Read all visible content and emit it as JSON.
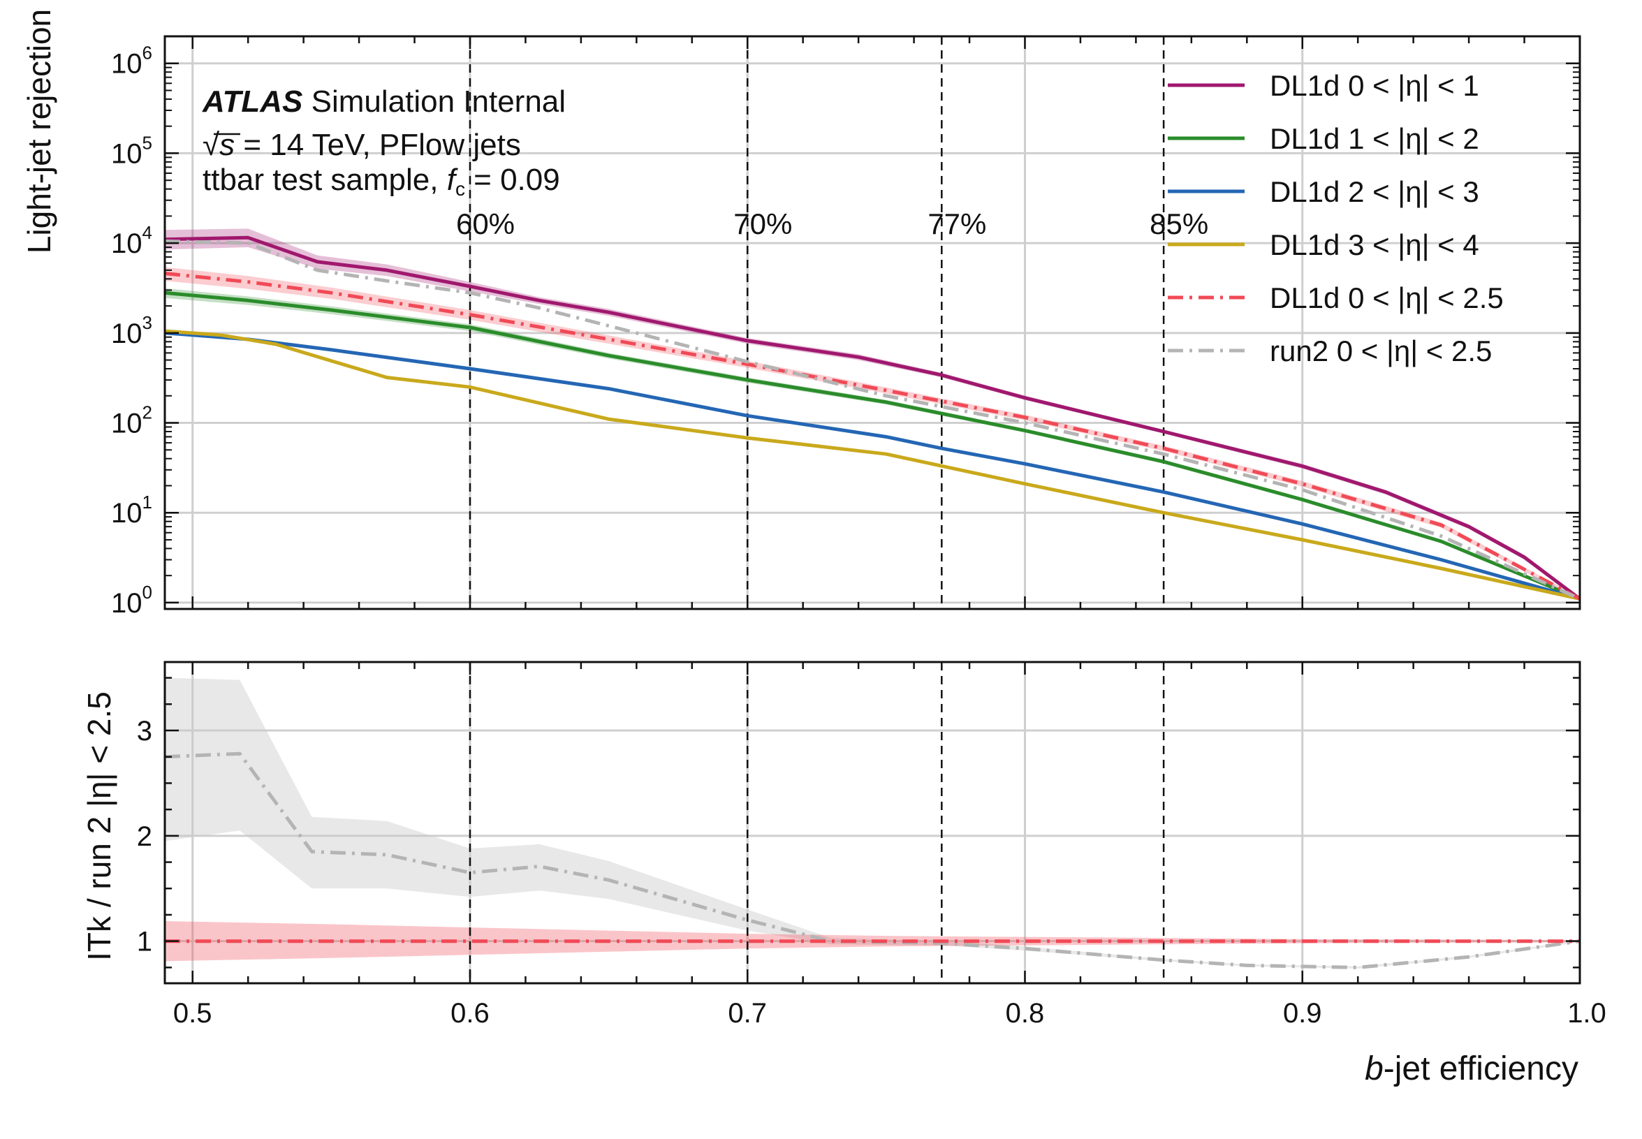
{
  "chart_data": [
    {
      "type": "line",
      "panel": "main",
      "ylabel": "Light-jet rejection",
      "yscale": "log",
      "xlim": [
        0.49,
        1.0
      ],
      "ylim": [
        0.85,
        2000000
      ],
      "ytick_labels": [
        {
          "v": 1,
          "base": "10",
          "exp": "0"
        },
        {
          "v": 10,
          "base": "10",
          "exp": "1"
        },
        {
          "v": 100,
          "base": "10",
          "exp": "2"
        },
        {
          "v": 1000,
          "base": "10",
          "exp": "3"
        },
        {
          "v": 10000,
          "base": "10",
          "exp": "4"
        },
        {
          "v": 100000,
          "base": "10",
          "exp": "5"
        },
        {
          "v": 1000000,
          "base": "10",
          "exp": "6"
        }
      ],
      "grid": true,
      "legend_position": "top-right",
      "annotation": {
        "atlas": "ATLAS",
        "atlas_suffix": " Simulation Internal",
        "line2_sqrt": "√",
        "line2_s": "s",
        "line2_rest": " = 14 TeV, PFlow jets",
        "line3_pre": "ttbar test sample, ",
        "line3_f": "f",
        "line3_sub": "c",
        "line3_post": " = 0.09"
      },
      "working_points": [
        {
          "x": 0.6,
          "label": "60%"
        },
        {
          "x": 0.7,
          "label": "70%"
        },
        {
          "x": 0.77,
          "label": "77%"
        },
        {
          "x": 0.85,
          "label": "85%"
        }
      ],
      "series": [
        {
          "name": "DL1d  0 < |η| < 1",
          "color": "#a0186e",
          "dash": "solid",
          "x": [
            0.49,
            0.52,
            0.545,
            0.57,
            0.6,
            0.625,
            0.65,
            0.7,
            0.74,
            0.77,
            0.8,
            0.85,
            0.9,
            0.93,
            0.96,
            0.98,
            1.0
          ],
          "y": [
            11000,
            11500,
            6200,
            5000,
            3300,
            2300,
            1700,
            820,
            540,
            340,
            190,
            80,
            33,
            17,
            7,
            3.2,
            1.1
          ],
          "band": {
            "lo": [
              8500,
              9000,
              5200,
              4300,
              2900,
              2100,
              1550,
              760,
              500,
              320,
              180,
              76,
              31,
              16,
              6.6,
              3.0,
              1.05
            ],
            "hi": [
              14000,
              14500,
              7300,
              5800,
              3700,
              2500,
              1850,
              880,
              580,
              360,
              200,
              84,
              35,
              18,
              7.4,
              3.4,
              1.15
            ]
          }
        },
        {
          "name": "DL1d  1 < |η| < 2",
          "color": "#2a8c2a",
          "dash": "solid",
          "x": [
            0.49,
            0.52,
            0.55,
            0.6,
            0.65,
            0.7,
            0.75,
            0.8,
            0.85,
            0.9,
            0.95,
            1.0
          ],
          "y": [
            2800,
            2300,
            1800,
            1150,
            560,
            300,
            170,
            82,
            37,
            14,
            4.8,
            1.1
          ],
          "band": {
            "lo": [
              2450,
              2050,
              1620,
              1050,
              520,
              280,
              160,
              78,
              35,
              13.3,
              4.6,
              1.05
            ],
            "hi": [
              3150,
              2550,
              1980,
              1250,
              600,
              320,
              180,
              86,
              39,
              14.7,
              5.0,
              1.15
            ]
          }
        },
        {
          "name": "DL1d  2 < |η| < 3",
          "color": "#2466b4",
          "dash": "solid",
          "x": [
            0.49,
            0.52,
            0.55,
            0.6,
            0.65,
            0.7,
            0.75,
            0.77,
            0.8,
            0.85,
            0.9,
            0.95,
            1.0
          ],
          "y": [
            1000,
            850,
            650,
            400,
            240,
            120,
            70,
            52,
            35,
            17,
            7.5,
            3.0,
            1.1
          ]
        },
        {
          "name": "DL1d  3 < |η| < 4",
          "color": "#c9a91c",
          "dash": "solid",
          "x": [
            0.49,
            0.51,
            0.53,
            0.57,
            0.6,
            0.65,
            0.7,
            0.75,
            0.8,
            0.85,
            0.9,
            0.95,
            1.0
          ],
          "y": [
            1050,
            950,
            750,
            320,
            250,
            110,
            68,
            45,
            21,
            10,
            5,
            2.4,
            1.1
          ]
        },
        {
          "name": "DL1d 0 < |η| < 2.5",
          "color": "#f04a56",
          "dash": "dashdot",
          "x": [
            0.49,
            0.52,
            0.55,
            0.6,
            0.65,
            0.7,
            0.75,
            0.8,
            0.85,
            0.9,
            0.95,
            1.0
          ],
          "y": [
            4600,
            3700,
            2800,
            1600,
            850,
            450,
            230,
            115,
            52,
            21,
            7.3,
            1.1
          ],
          "band": {
            "lo": [
              3800,
              3100,
              2400,
              1400,
              760,
              410,
              212,
              107,
              48.5,
              19.5,
              6.8,
              1.05
            ],
            "hi": [
              5400,
              4300,
              3200,
              1800,
              940,
              490,
              248,
              123,
              55.5,
              22.5,
              7.8,
              1.15
            ]
          }
        },
        {
          "name": "run2 0 < |η| < 2.5",
          "color": "#b4b4b4",
          "dash": "dashdot",
          "x": [
            0.49,
            0.52,
            0.545,
            0.57,
            0.6,
            0.625,
            0.65,
            0.7,
            0.75,
            0.8,
            0.85,
            0.9,
            0.95,
            1.0
          ],
          "y": [
            10500,
            10000,
            5000,
            3800,
            2800,
            1900,
            1200,
            480,
            200,
            100,
            45,
            18,
            5.5,
            1.1
          ]
        }
      ],
      "legend": [
        {
          "label": "DL1d  0 < |η| < 1"
        },
        {
          "label": "DL1d  1 < |η| < 2"
        },
        {
          "label": "DL1d  2 < |η| < 3"
        },
        {
          "label": "DL1d  3 < |η| < 4"
        },
        {
          "label": "DL1d 0 < |η| < 2.5"
        },
        {
          "label": "run2 0 < |η| < 2.5"
        }
      ]
    },
    {
      "type": "line",
      "panel": "ratio",
      "ylabel": "ITk / run 2 |η| < 2.5",
      "xlabel_italic": "b",
      "xlabel_rest": "-jet efficiency",
      "xlim": [
        0.49,
        1.0
      ],
      "ylim": [
        0.6,
        3.65
      ],
      "xticks": [
        {
          "v": 0.5,
          "label": "0.5"
        },
        {
          "v": 0.6,
          "label": "0.6"
        },
        {
          "v": 0.7,
          "label": "0.7"
        },
        {
          "v": 0.8,
          "label": "0.8"
        },
        {
          "v": 0.9,
          "label": "0.9"
        },
        {
          "v": 1.0,
          "label": "1.0"
        }
      ],
      "yticks": [
        {
          "v": 1,
          "label": "1"
        },
        {
          "v": 2,
          "label": "2"
        },
        {
          "v": 3,
          "label": "3"
        }
      ],
      "grid": true,
      "series": [
        {
          "name": "run2 0 < |η| < 2.5",
          "color": "#b4b4b4",
          "dash": "dashdot",
          "x": [
            0.49,
            0.517,
            0.543,
            0.57,
            0.6,
            0.625,
            0.65,
            0.7,
            0.73,
            0.77,
            0.8,
            0.85,
            0.88,
            0.92,
            0.96,
            1.0
          ],
          "y": [
            2.75,
            2.78,
            1.85,
            1.82,
            1.65,
            1.71,
            1.58,
            1.2,
            1.0,
            0.98,
            0.93,
            0.82,
            0.77,
            0.75,
            0.85,
            1.0
          ],
          "band": {
            "lo": [
              1.95,
              2.05,
              1.5,
              1.5,
              1.42,
              1.48,
              1.4,
              1.1,
              0.97,
              0.96,
              0.91,
              0.81,
              0.76,
              0.74,
              0.84,
              0.99
            ],
            "hi": [
              3.5,
              3.48,
              2.18,
              2.14,
              1.88,
              1.92,
              1.76,
              1.3,
              1.03,
              1.0,
              0.95,
              0.83,
              0.78,
              0.76,
              0.86,
              1.01
            ]
          }
        },
        {
          "name": "DL1d 0 < |η| < 2.5",
          "color": "#f04a56",
          "dash": "dashdot",
          "x": [
            0.49,
            0.55,
            0.6,
            0.65,
            0.7,
            0.75,
            0.8,
            0.85,
            0.9,
            0.95,
            1.0
          ],
          "y": [
            1,
            1,
            1,
            1,
            1,
            1,
            1,
            1,
            1,
            1,
            1
          ],
          "band": {
            "lo": [
              0.81,
              0.84,
              0.87,
              0.9,
              0.93,
              0.95,
              0.96,
              0.97,
              0.98,
              0.985,
              0.99
            ],
            "hi": [
              1.19,
              1.16,
              1.13,
              1.1,
              1.07,
              1.05,
              1.04,
              1.03,
              1.02,
              1.015,
              1.01
            ]
          }
        }
      ]
    }
  ]
}
